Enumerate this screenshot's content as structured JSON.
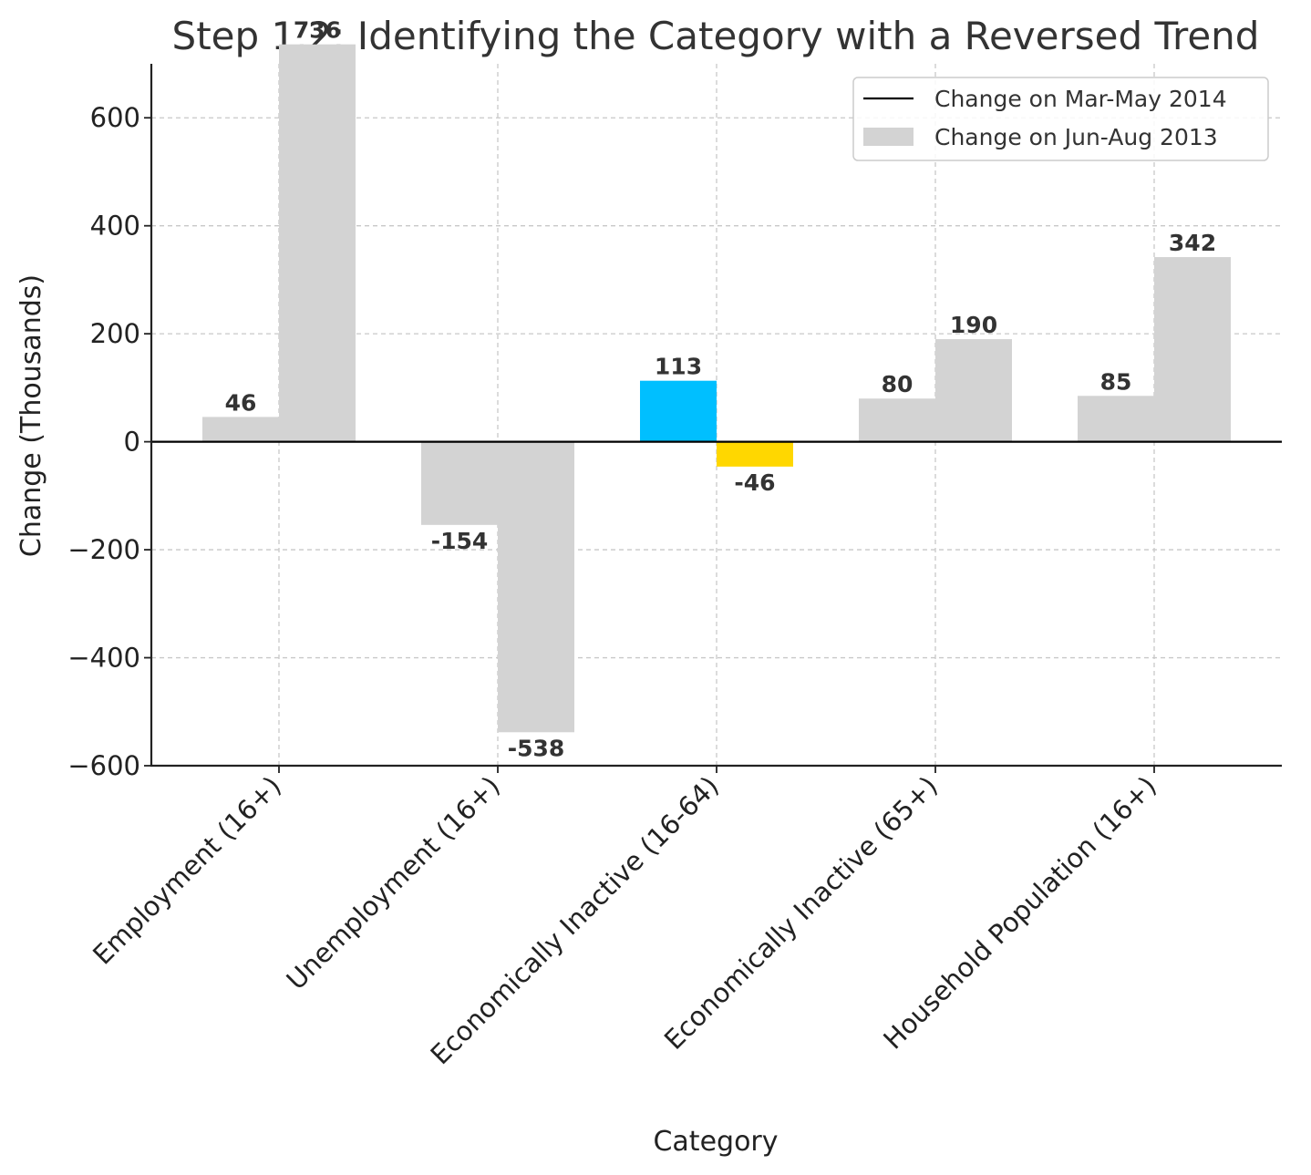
{
  "chart_data": {
    "type": "bar",
    "title": "Step 1.2: Identifying the Category with a Reversed Trend",
    "xlabel": "Category",
    "ylabel": "Change (Thousands)",
    "ylim": [
      -600,
      700
    ],
    "yticks": [
      -600,
      -400,
      -200,
      0,
      200,
      400,
      600
    ],
    "ytick_labels": [
      "−600",
      "−400",
      "−200",
      "0",
      "200",
      "400",
      "600"
    ],
    "grid": true,
    "legend_position": "top-right",
    "categories": [
      "Employment (16+)",
      "Unemployment (16+)",
      "Economically Inactive (16-64)",
      "Economically Inactive (65+)",
      "Household Population (16+)"
    ],
    "series": [
      {
        "name": "Change on Mar-May 2014",
        "legend_marker": "line",
        "legend_color": "#000000",
        "values": [
          46,
          -154,
          113,
          80,
          85
        ],
        "labels": [
          "46",
          "-154",
          "113",
          "80",
          "85"
        ],
        "colors": [
          "#d3d3d3",
          "#d3d3d3",
          "#00bfff",
          "#d3d3d3",
          "#d3d3d3"
        ]
      },
      {
        "name": "Change on Jun-Aug 2013",
        "legend_marker": "patch",
        "legend_color": "#d3d3d3",
        "values": [
          736,
          -538,
          -46,
          190,
          342
        ],
        "labels": [
          "736",
          "-538",
          "-46",
          "190",
          "342"
        ],
        "colors": [
          "#d3d3d3",
          "#d3d3d3",
          "#ffd700",
          "#d3d3d3",
          "#d3d3d3"
        ]
      }
    ]
  }
}
